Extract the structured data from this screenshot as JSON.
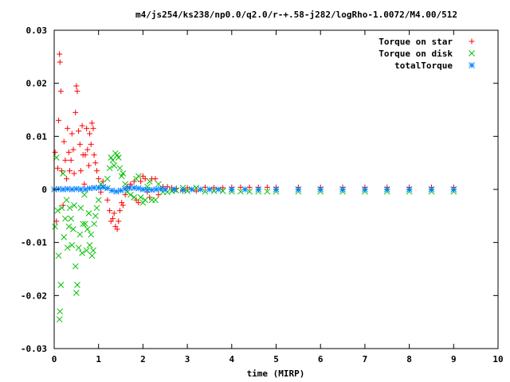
{
  "chart_data": {
    "type": "scatter",
    "title": "m4/js254/ks238/np0.0/q2.0/r-+.58-j282/logRho-1.0072/M4.00/512",
    "xlabel": "time (MIRP)",
    "ylabel": "",
    "xlim": [
      0,
      10
    ],
    "ylim": [
      -0.03,
      0.03
    ],
    "x_ticks": [
      "0",
      "1",
      "2",
      "3",
      "4",
      "5",
      "6",
      "7",
      "8",
      "9",
      "10"
    ],
    "y_ticks": [
      "-0.03",
      "-0.02",
      "-0.01",
      "0",
      "0.01",
      "0.02",
      "0.03"
    ],
    "grid": false,
    "legend_position": "top-right",
    "series": [
      {
        "name": "Torque on star",
        "marker": "plus",
        "color": "#ff0000",
        "points": [
          [
            0.02,
            0.007
          ],
          [
            0.05,
            -0.006
          ],
          [
            0.08,
            0.004
          ],
          [
            0.1,
            0.013
          ],
          [
            0.12,
            0.0255
          ],
          [
            0.13,
            0.024
          ],
          [
            0.15,
            0.0185
          ],
          [
            0.17,
            0.0035
          ],
          [
            0.2,
            -0.003
          ],
          [
            0.22,
            0.009
          ],
          [
            0.25,
            0.0055
          ],
          [
            0.28,
            0.002
          ],
          [
            0.3,
            0.0115
          ],
          [
            0.33,
            0.007
          ],
          [
            0.35,
            0.0035
          ],
          [
            0.38,
            0.0055
          ],
          [
            0.4,
            0.0105
          ],
          [
            0.43,
            0.0075
          ],
          [
            0.45,
            0.003
          ],
          [
            0.48,
            0.0145
          ],
          [
            0.5,
            0.0195
          ],
          [
            0.52,
            0.0185
          ],
          [
            0.55,
            0.011
          ],
          [
            0.58,
            0.0085
          ],
          [
            0.6,
            0.0035
          ],
          [
            0.63,
            0.012
          ],
          [
            0.65,
            0.0065
          ],
          [
            0.68,
            0.001
          ],
          [
            0.7,
            0.0065
          ],
          [
            0.73,
            0.0115
          ],
          [
            0.75,
            0.0075
          ],
          [
            0.78,
            0.0045
          ],
          [
            0.8,
            0.0105
          ],
          [
            0.83,
            0.0085
          ],
          [
            0.85,
            0.0125
          ],
          [
            0.88,
            0.0115
          ],
          [
            0.9,
            0.0065
          ],
          [
            0.93,
            0.005
          ],
          [
            0.96,
            0.0035
          ],
          [
            1.0,
            0.002
          ],
          [
            1.05,
            -0.0005
          ],
          [
            1.1,
            0.0015
          ],
          [
            1.2,
            -0.002
          ],
          [
            1.25,
            -0.004
          ],
          [
            1.28,
            -0.006
          ],
          [
            1.32,
            -0.0055
          ],
          [
            1.35,
            -0.0045
          ],
          [
            1.38,
            -0.007
          ],
          [
            1.42,
            -0.0075
          ],
          [
            1.45,
            -0.006
          ],
          [
            1.48,
            -0.004
          ],
          [
            1.52,
            -0.0025
          ],
          [
            1.55,
            -0.003
          ],
          [
            1.6,
            -0.001
          ],
          [
            1.65,
            0.0005
          ],
          [
            1.72,
            0.001
          ],
          [
            1.8,
            0.0015
          ],
          [
            1.85,
            -0.002
          ],
          [
            1.9,
            -0.0025
          ],
          [
            1.95,
            0.0015
          ],
          [
            2.0,
            0.0025
          ],
          [
            2.05,
            0.002
          ],
          [
            2.1,
            -0.0005
          ],
          [
            2.15,
            -0.0015
          ],
          [
            2.2,
            0.002
          ],
          [
            2.28,
            0.002
          ],
          [
            2.35,
            -0.001
          ],
          [
            2.45,
            0.0005
          ],
          [
            2.55,
            0.0005
          ],
          [
            2.65,
            0.0003
          ],
          [
            2.75,
            0.0002
          ],
          [
            2.9,
            -0.0003
          ],
          [
            3.0,
            0.0003
          ],
          [
            3.2,
            -0.0003
          ],
          [
            3.4,
            0.0004
          ],
          [
            3.6,
            0.0003
          ],
          [
            3.8,
            0.0003
          ],
          [
            4.0,
            0.0004
          ],
          [
            4.2,
            0.0004
          ],
          [
            4.4,
            0.0004
          ],
          [
            4.6,
            0.0004
          ],
          [
            4.8,
            0.0004
          ],
          [
            5.0,
            0.0004
          ],
          [
            5.5,
            0.0004
          ],
          [
            6.0,
            0.0004
          ],
          [
            6.5,
            0.0004
          ],
          [
            7.0,
            0.0004
          ],
          [
            7.5,
            0.0004
          ],
          [
            8.0,
            0.0004
          ],
          [
            8.5,
            0.0004
          ],
          [
            9.0,
            0.0004
          ]
        ]
      },
      {
        "name": "Torque on disk",
        "marker": "cross",
        "color": "#00c000",
        "points": [
          [
            0.02,
            -0.007
          ],
          [
            0.05,
            0.006
          ],
          [
            0.08,
            -0.004
          ],
          [
            0.1,
            -0.0125
          ],
          [
            0.12,
            -0.0245
          ],
          [
            0.13,
            -0.023
          ],
          [
            0.15,
            -0.018
          ],
          [
            0.17,
            -0.0035
          ],
          [
            0.2,
            0.003
          ],
          [
            0.22,
            -0.009
          ],
          [
            0.25,
            -0.0055
          ],
          [
            0.28,
            -0.002
          ],
          [
            0.3,
            -0.011
          ],
          [
            0.33,
            -0.007
          ],
          [
            0.35,
            -0.0035
          ],
          [
            0.38,
            -0.0055
          ],
          [
            0.4,
            -0.0105
          ],
          [
            0.43,
            -0.0075
          ],
          [
            0.45,
            -0.003
          ],
          [
            0.48,
            -0.0145
          ],
          [
            0.5,
            -0.0195
          ],
          [
            0.52,
            -0.018
          ],
          [
            0.55,
            -0.011
          ],
          [
            0.58,
            -0.0085
          ],
          [
            0.6,
            -0.0035
          ],
          [
            0.63,
            -0.012
          ],
          [
            0.65,
            -0.0065
          ],
          [
            0.68,
            -0.001
          ],
          [
            0.7,
            -0.0065
          ],
          [
            0.73,
            -0.0115
          ],
          [
            0.75,
            -0.0075
          ],
          [
            0.78,
            -0.0045
          ],
          [
            0.8,
            -0.0105
          ],
          [
            0.83,
            -0.0085
          ],
          [
            0.85,
            -0.0125
          ],
          [
            0.88,
            -0.0115
          ],
          [
            0.9,
            -0.0065
          ],
          [
            0.93,
            -0.005
          ],
          [
            0.96,
            -0.0035
          ],
          [
            1.0,
            -0.002
          ],
          [
            1.05,
            0.001
          ],
          [
            1.1,
            0.0005
          ],
          [
            1.2,
            0.002
          ],
          [
            1.25,
            0.004
          ],
          [
            1.28,
            0.006
          ],
          [
            1.32,
            0.0055
          ],
          [
            1.35,
            0.0045
          ],
          [
            1.38,
            0.0068
          ],
          [
            1.42,
            0.0065
          ],
          [
            1.45,
            0.006
          ],
          [
            1.48,
            0.004
          ],
          [
            1.52,
            0.0025
          ],
          [
            1.55,
            0.003
          ],
          [
            1.6,
            0.001
          ],
          [
            1.65,
            -0.0005
          ],
          [
            1.72,
            -0.001
          ],
          [
            1.8,
            -0.0015
          ],
          [
            1.85,
            0.002
          ],
          [
            1.9,
            0.0025
          ],
          [
            1.95,
            -0.0015
          ],
          [
            2.0,
            -0.0025
          ],
          [
            2.05,
            -0.002
          ],
          [
            2.1,
            0.0005
          ],
          [
            2.15,
            0.0015
          ],
          [
            2.2,
            -0.002
          ],
          [
            2.28,
            -0.002
          ],
          [
            2.35,
            0.001
          ],
          [
            2.45,
            -0.0005
          ],
          [
            2.55,
            -0.0005
          ],
          [
            2.65,
            -0.0003
          ],
          [
            2.75,
            -0.0002
          ],
          [
            2.9,
            0.0003
          ],
          [
            3.0,
            -0.0003
          ],
          [
            3.2,
            0.0003
          ],
          [
            3.4,
            -0.0004
          ],
          [
            3.6,
            -0.0003
          ],
          [
            3.8,
            -0.0003
          ],
          [
            4.0,
            -0.0004
          ],
          [
            4.2,
            -0.0004
          ],
          [
            4.4,
            -0.0004
          ],
          [
            4.6,
            -0.0004
          ],
          [
            4.8,
            -0.0004
          ],
          [
            5.0,
            -0.0004
          ],
          [
            5.5,
            -0.0004
          ],
          [
            6.0,
            -0.0004
          ],
          [
            6.5,
            -0.0004
          ],
          [
            7.0,
            -0.0004
          ],
          [
            7.5,
            -0.0004
          ],
          [
            8.0,
            -0.0004
          ],
          [
            8.5,
            -0.0004
          ],
          [
            9.0,
            -0.0004
          ]
        ]
      },
      {
        "name": "totalTorque",
        "marker": "star",
        "color": "#0080ff",
        "points": [
          [
            0.0,
            0.0
          ],
          [
            0.1,
            0.0001
          ],
          [
            0.2,
            0.0
          ],
          [
            0.3,
            0.0001
          ],
          [
            0.4,
            0.0
          ],
          [
            0.5,
            0.0001
          ],
          [
            0.6,
            0.0
          ],
          [
            0.7,
            0.0
          ],
          [
            0.8,
            0.0002
          ],
          [
            0.9,
            0.0003
          ],
          [
            1.0,
            0.0003
          ],
          [
            1.1,
            0.0004
          ],
          [
            1.2,
            0.0002
          ],
          [
            1.3,
            -0.0002
          ],
          [
            1.4,
            -0.0004
          ],
          [
            1.5,
            -0.0002
          ],
          [
            1.6,
            0.0001
          ],
          [
            1.7,
            0.0003
          ],
          [
            1.8,
            0.0003
          ],
          [
            1.9,
            0.0002
          ],
          [
            2.0,
            0.0
          ],
          [
            2.1,
            -0.0001
          ],
          [
            2.2,
            -0.0001
          ],
          [
            2.3,
            0.0
          ],
          [
            2.4,
            0.0001
          ],
          [
            2.5,
            0.0
          ],
          [
            2.7,
            0.0
          ],
          [
            2.9,
            -0.0001
          ],
          [
            3.1,
            0.0
          ],
          [
            3.3,
            0.0
          ],
          [
            3.5,
            0.0
          ],
          [
            3.7,
            0.0
          ],
          [
            4.0,
            0.0
          ],
          [
            4.3,
            0.0
          ],
          [
            4.6,
            0.0
          ],
          [
            5.0,
            0.0
          ],
          [
            5.5,
            0.0
          ],
          [
            6.0,
            0.0
          ],
          [
            6.5,
            0.0
          ],
          [
            7.0,
            0.0
          ],
          [
            7.5,
            0.0
          ],
          [
            8.0,
            0.0
          ],
          [
            8.5,
            0.0
          ],
          [
            9.0,
            0.0
          ]
        ]
      }
    ]
  }
}
